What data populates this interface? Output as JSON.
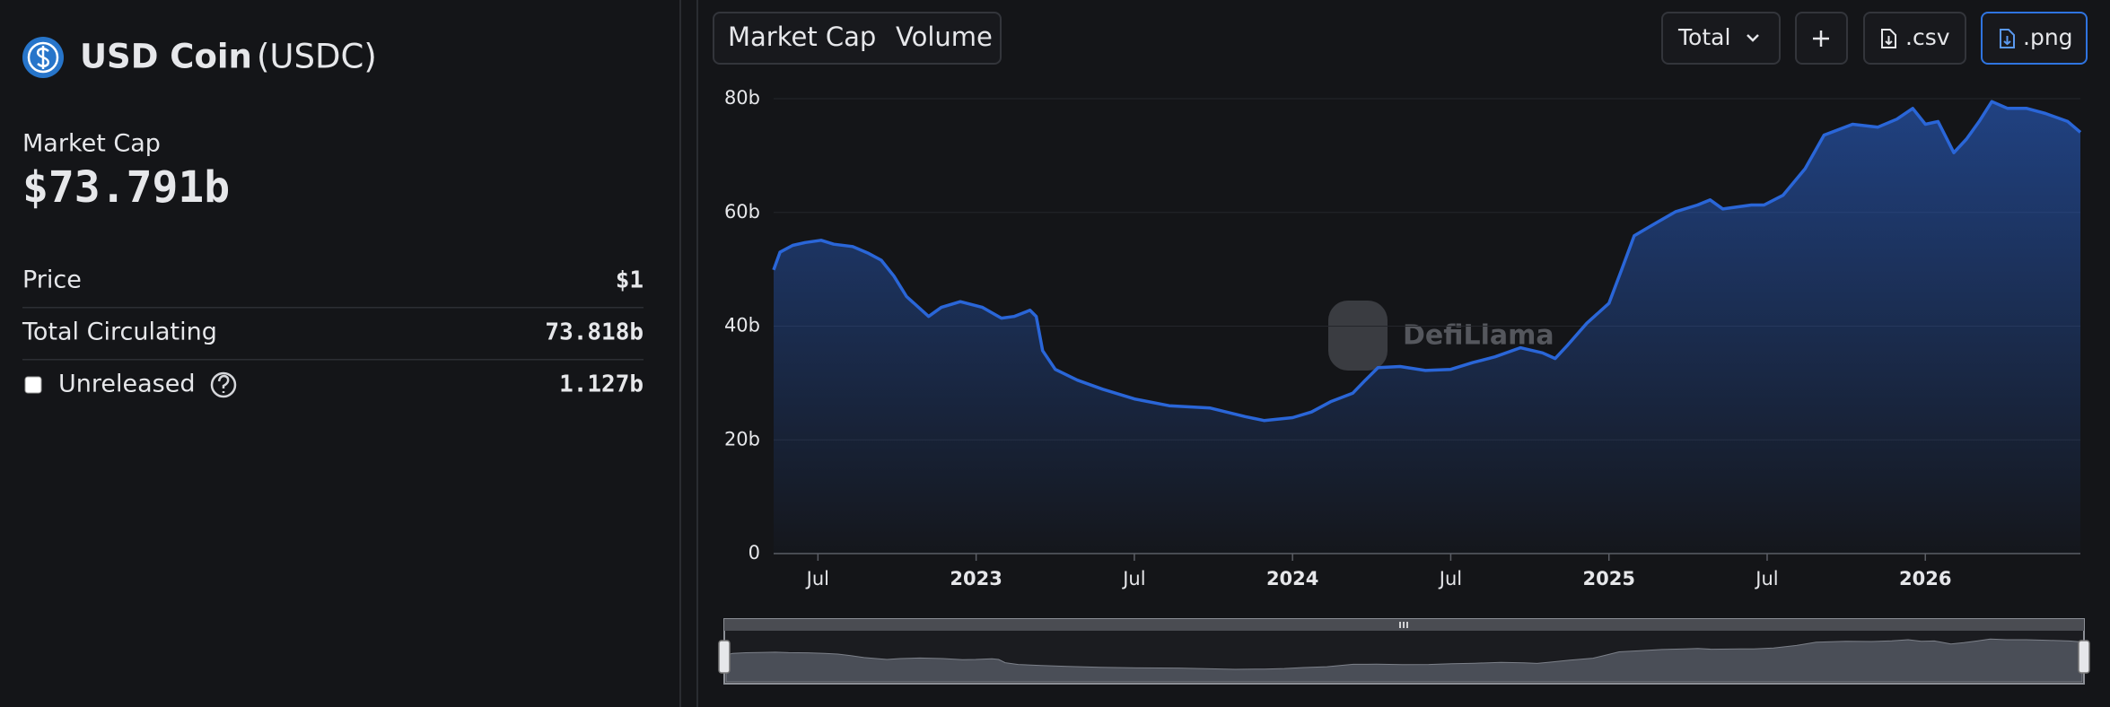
{
  "header": {
    "title": "USD Coin",
    "ticker": "(USDC)"
  },
  "summary": {
    "label": "Market Cap",
    "value": "$73.791b"
  },
  "stats": [
    {
      "label": "Price",
      "value": "$1"
    },
    {
      "label": "Total Circulating",
      "value": "73.818b"
    },
    {
      "label": "Unreleased",
      "value": "1.127b"
    }
  ],
  "toolbar": {
    "tabs": [
      "Market Cap",
      "Volume"
    ],
    "select": "Total",
    "buttons": [
      ".csv",
      ".png"
    ]
  },
  "chart_data": {
    "type": "area",
    "color": "#2a66d8",
    "grid": true,
    "watermark": "DefiLlama",
    "x": [
      2022.36,
      2022.38,
      2022.42,
      2022.46,
      2022.51,
      2022.55,
      2022.61,
      2022.66,
      2022.7,
      2022.74,
      2022.78,
      2022.85,
      2022.89,
      2022.95,
      2023.02,
      2023.08,
      2023.12,
      2023.17,
      2023.19,
      2023.21,
      2023.25,
      2023.32,
      2023.4,
      2023.5,
      2023.61,
      2023.74,
      2023.85,
      2023.91,
      2024.0,
      2024.06,
      2024.12,
      2024.19,
      2024.23,
      2024.27,
      2024.34,
      2024.42,
      2024.5,
      2024.57,
      2024.64,
      2024.72,
      2024.79,
      2024.83,
      2024.87,
      2024.93,
      2025.0,
      2025.04,
      2025.08,
      2025.15,
      2025.21,
      2025.28,
      2025.32,
      2025.36,
      2025.45,
      2025.49,
      2025.55,
      2025.62,
      2025.68,
      2025.77,
      2025.85,
      2025.91,
      2025.96,
      2026.0,
      2026.04,
      2026.09,
      2026.13,
      2026.17,
      2026.21,
      2026.26,
      2026.32,
      2026.38,
      2026.45,
      2026.49
    ],
    "values": [
      49.9,
      53,
      54.2,
      54.7,
      55.1,
      54.4,
      54,
      52.8,
      51.6,
      48.8,
      45.2,
      41.7,
      43.3,
      44.3,
      43.3,
      41.4,
      41.7,
      42.8,
      41.7,
      35.7,
      32.4,
      30.5,
      28.9,
      27.2,
      26.0,
      25.6,
      24.1,
      23.4,
      23.9,
      24.9,
      26.7,
      28.2,
      30.5,
      32.7,
      32.9,
      32.2,
      32.4,
      33.6,
      34.6,
      36.2,
      35.3,
      34.3,
      36.7,
      40.5,
      44.0,
      49.9,
      55.9,
      58.2,
      60.1,
      61.3,
      62.2,
      60.6,
      61.3,
      61.3,
      63.0,
      67.7,
      73.6,
      75.5,
      75.0,
      76.4,
      78.3,
      75.5,
      76.0,
      70.5,
      72.9,
      76.0,
      79.5,
      78.3,
      78.3,
      77.4,
      76.0,
      74.1
    ],
    "xlim": [
      2022.36,
      2026.49
    ],
    "xticks": [
      {
        "value": 2022.5,
        "label": "Jul"
      },
      2023,
      {
        "value": 2023.5,
        "label": "Jul"
      },
      2024,
      {
        "value": 2024.5,
        "label": "Jul"
      },
      2025,
      {
        "value": 2025.5,
        "label": "Jul"
      },
      2026
    ],
    "ylim": [
      0,
      80
    ],
    "yticks": [
      0,
      {
        "value": 20,
        "label": "20b"
      },
      {
        "value": 40,
        "label": "40b"
      },
      {
        "value": 60,
        "label": "60b"
      },
      {
        "value": 80,
        "label": "80b"
      }
    ]
  }
}
